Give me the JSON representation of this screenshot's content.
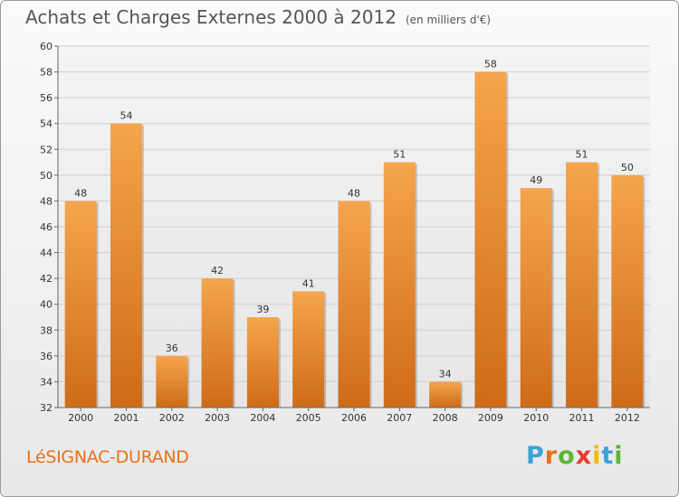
{
  "title": "Achats et Charges Externes 2000 à 2012",
  "subtitle": "(en milliers d'€)",
  "commune": "LéSIGNAC-DURAND",
  "brand": {
    "letters": [
      "P",
      "r",
      "o",
      "x",
      "i",
      "t",
      "i"
    ],
    "colors": [
      "#3aa2d8",
      "#e8711a",
      "#5bb535",
      "#e63a2e",
      "#f5b800",
      "#3aa2d8",
      "#5bb535"
    ]
  },
  "colors": {
    "bar_light": "#f5a54d",
    "bar_dark": "#cf6b18",
    "title": "#555555",
    "commune": "#e8711a"
  },
  "chart_data": {
    "type": "bar",
    "title": "Achats et Charges Externes 2000 à 2012",
    "subtitle": "(en milliers d'€)",
    "categories": [
      "2000",
      "2001",
      "2002",
      "2003",
      "2004",
      "2005",
      "2006",
      "2007",
      "2008",
      "2009",
      "2010",
      "2011",
      "2012"
    ],
    "values": [
      48,
      54,
      36,
      42,
      39,
      41,
      48,
      51,
      34,
      58,
      49,
      51,
      50
    ],
    "ylim": [
      32,
      60
    ],
    "yticks": [
      32,
      34,
      36,
      38,
      40,
      42,
      44,
      46,
      48,
      50,
      52,
      54,
      56,
      58,
      60
    ],
    "grid": true,
    "data_labels": true
  }
}
